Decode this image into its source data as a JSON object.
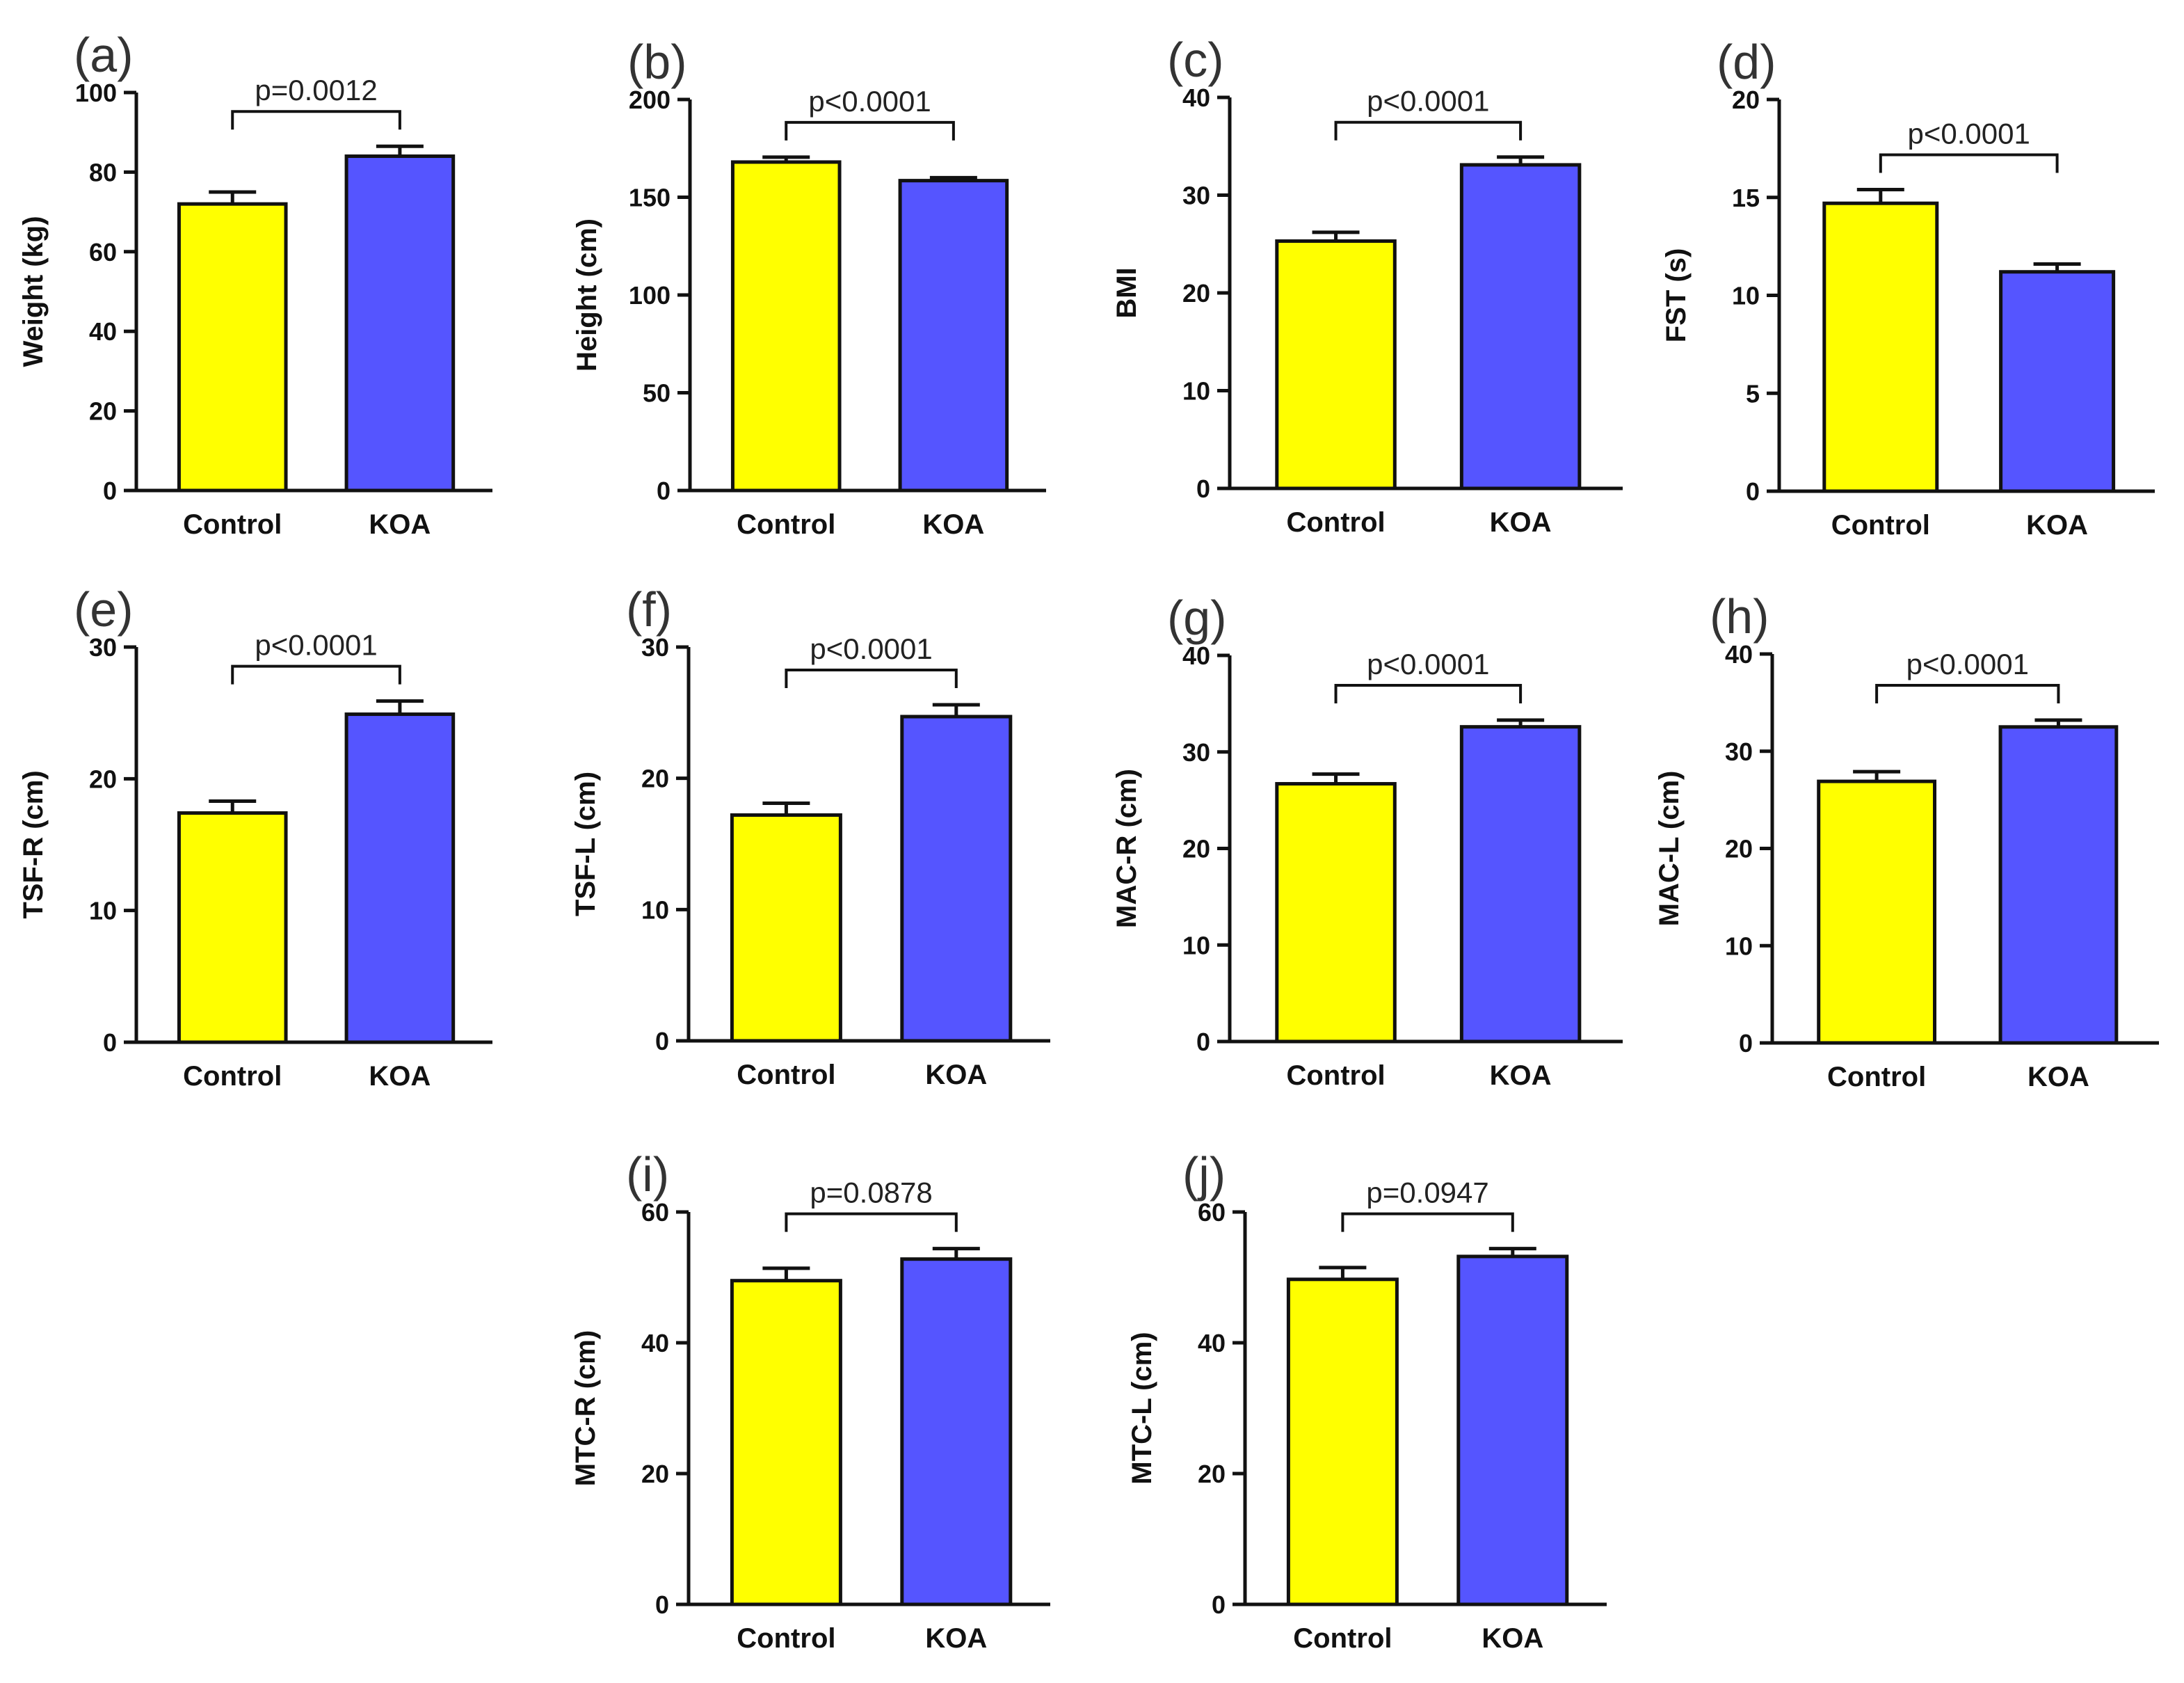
{
  "colors": {
    "control": "#ffff00",
    "koa": "#5555ff",
    "axis": "#111111"
  },
  "chart_data": [
    {
      "type": "bar",
      "panel": "(a)",
      "ylabel": "Weight (kg)",
      "categories": [
        "Control",
        "KOA"
      ],
      "values": [
        72,
        84
      ],
      "errors": [
        3,
        2.5
      ],
      "ylim": [
        0,
        100
      ],
      "yticks": [
        0,
        20,
        40,
        60,
        80,
        100
      ],
      "significance": "p=0.0012"
    },
    {
      "type": "bar",
      "panel": "(b)",
      "ylabel": "Height (cm)",
      "categories": [
        "Control",
        "KOA"
      ],
      "values": [
        168,
        158.5
      ],
      "errors": [
        2.5,
        1.5
      ],
      "ylim": [
        0,
        200
      ],
      "yticks": [
        0,
        50,
        100,
        150,
        200
      ],
      "significance": "p<0.0001"
    },
    {
      "type": "bar",
      "panel": "(c)",
      "ylabel": "BMI",
      "categories": [
        "Control",
        "KOA"
      ],
      "values": [
        25.3,
        33.1
      ],
      "errors": [
        0.9,
        0.8
      ],
      "ylim": [
        0,
        40
      ],
      "yticks": [
        0,
        10,
        20,
        30,
        40
      ],
      "significance": "p<0.0001"
    },
    {
      "type": "bar",
      "panel": "(d)",
      "ylabel": "FST (s)",
      "categories": [
        "Control",
        "KOA"
      ],
      "values": [
        14.7,
        11.2
      ],
      "errors": [
        0.7,
        0.4
      ],
      "ylim": [
        0,
        20
      ],
      "yticks": [
        0,
        5,
        10,
        15,
        20
      ],
      "significance": "p<0.0001"
    },
    {
      "type": "bar",
      "panel": "(e)",
      "ylabel": "TSF-R (cm)",
      "categories": [
        "Control",
        "KOA"
      ],
      "values": [
        17.4,
        24.9
      ],
      "errors": [
        0.9,
        1.0
      ],
      "ylim": [
        0,
        30
      ],
      "yticks": [
        0,
        10,
        20,
        30
      ],
      "significance": "p<0.0001"
    },
    {
      "type": "bar",
      "panel": "(f)",
      "ylabel": "TSF-L (cm)",
      "categories": [
        "Control",
        "KOA"
      ],
      "values": [
        17.2,
        24.7
      ],
      "errors": [
        0.9,
        0.9
      ],
      "ylim": [
        0,
        30
      ],
      "yticks": [
        0,
        10,
        20,
        30
      ],
      "significance": "p<0.0001"
    },
    {
      "type": "bar",
      "panel": "(g)",
      "ylabel": "MAC-R (cm)",
      "categories": [
        "Control",
        "KOA"
      ],
      "values": [
        26.7,
        32.6
      ],
      "errors": [
        1.0,
        0.7
      ],
      "ylim": [
        0,
        40
      ],
      "yticks": [
        0,
        10,
        20,
        30,
        40
      ],
      "significance": "p<0.0001"
    },
    {
      "type": "bar",
      "panel": "(h)",
      "ylabel": "MAC-L (cm)",
      "categories": [
        "Control",
        "KOA"
      ],
      "values": [
        26.9,
        32.5
      ],
      "errors": [
        1.0,
        0.7
      ],
      "ylim": [
        0,
        40
      ],
      "yticks": [
        0,
        10,
        20,
        30,
        40
      ],
      "significance": "p<0.0001"
    },
    {
      "type": "bar",
      "panel": "(i)",
      "ylabel": "MTC-R (cm)",
      "categories": [
        "Control",
        "KOA"
      ],
      "values": [
        49.5,
        52.8
      ],
      "errors": [
        1.9,
        1.6
      ],
      "ylim": [
        0,
        60
      ],
      "yticks": [
        0,
        20,
        40,
        60
      ],
      "significance": "p=0.0878"
    },
    {
      "type": "bar",
      "panel": "(j)",
      "ylabel": "MTC-L (cm)",
      "categories": [
        "Control",
        "KOA"
      ],
      "values": [
        49.7,
        53.2
      ],
      "errors": [
        1.8,
        1.2
      ],
      "ylim": [
        0,
        60
      ],
      "yticks": [
        0,
        20,
        40,
        60
      ],
      "significance": "p=0.0947"
    }
  ]
}
